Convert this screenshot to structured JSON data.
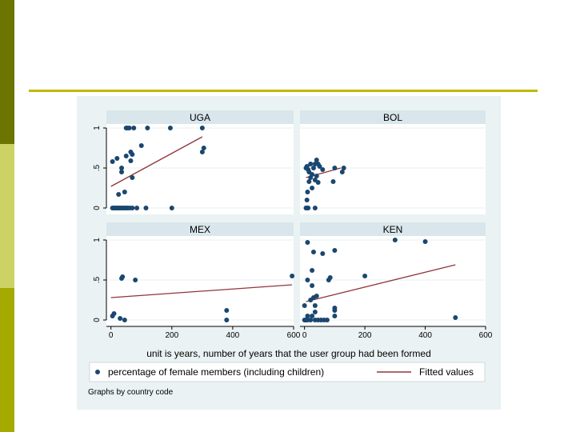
{
  "colors": {
    "slide_band_dark": "#6b7500",
    "slide_band_light": "#cdd265",
    "slide_band_mid": "#a4aa00",
    "slide_rule": "#bfb800",
    "graph_region": "#eaf2f3",
    "strip": "#d9e6eb",
    "point": "#1a476f",
    "fit_line": "#90353b"
  },
  "chart_data": {
    "type": "scatter",
    "layout": "2x2 small multiples",
    "xlabel": "unit is years, number of years that the user group had been formed",
    "ylabel": "",
    "x_ticks": [
      "0",
      "200",
      "400",
      "600"
    ],
    "y_ticks": [
      "0",
      ".5",
      "1"
    ],
    "xlim": [
      -15,
      600
    ],
    "ylim": [
      0,
      1
    ],
    "legend": {
      "position": "bottom",
      "entries": [
        {
          "label": "percentage of female members (including children)",
          "type": "marker"
        },
        {
          "label": "Fitted values",
          "type": "line"
        }
      ]
    },
    "note": "Graphs by country code",
    "panels": [
      {
        "name": "UGA",
        "fit": {
          "x": [
            0,
            300
          ],
          "y": [
            0.27,
            0.89
          ]
        },
        "points": [
          [
            5,
            0
          ],
          [
            8,
            0
          ],
          [
            12,
            0
          ],
          [
            15,
            0
          ],
          [
            18,
            0
          ],
          [
            22,
            0
          ],
          [
            25,
            0
          ],
          [
            30,
            0
          ],
          [
            35,
            0
          ],
          [
            40,
            0
          ],
          [
            45,
            0
          ],
          [
            50,
            0
          ],
          [
            55,
            0
          ],
          [
            62,
            0
          ],
          [
            70,
            0
          ],
          [
            85,
            0
          ],
          [
            115,
            0
          ],
          [
            200,
            0
          ],
          [
            25,
            0.17
          ],
          [
            45,
            0.2
          ],
          [
            70,
            0.38
          ],
          [
            35,
            0.45
          ],
          [
            35,
            0.5
          ],
          [
            5,
            0.58
          ],
          [
            20,
            0.62
          ],
          [
            65,
            0.59
          ],
          [
            50,
            0.65
          ],
          [
            70,
            0.67
          ],
          [
            65,
            0.7
          ],
          [
            100,
            0.78
          ],
          [
            300,
            0.7
          ],
          [
            305,
            0.75
          ],
          [
            50,
            1
          ],
          [
            55,
            1
          ],
          [
            60,
            1
          ],
          [
            75,
            1
          ],
          [
            120,
            1
          ],
          [
            195,
            1
          ],
          [
            300,
            1
          ]
        ]
      },
      {
        "name": "BOL",
        "fit": {
          "x": [
            5,
            120
          ],
          "y": [
            0.38,
            0.5
          ]
        },
        "points": [
          [
            5,
            0
          ],
          [
            8,
            0
          ],
          [
            12,
            0
          ],
          [
            35,
            0
          ],
          [
            8,
            0.1
          ],
          [
            10,
            0.2
          ],
          [
            25,
            0.25
          ],
          [
            15,
            0.33
          ],
          [
            35,
            0.35
          ],
          [
            45,
            0.32
          ],
          [
            40,
            0.4
          ],
          [
            95,
            0.33
          ],
          [
            20,
            0.38
          ],
          [
            5,
            0.5
          ],
          [
            8,
            0.52
          ],
          [
            12,
            0.48
          ],
          [
            15,
            0.45
          ],
          [
            20,
            0.55
          ],
          [
            25,
            0.42
          ],
          [
            30,
            0.5
          ],
          [
            35,
            0.55
          ],
          [
            40,
            0.6
          ],
          [
            45,
            0.55
          ],
          [
            50,
            0.52
          ],
          [
            60,
            0.48
          ],
          [
            100,
            0.5
          ],
          [
            125,
            0.45
          ],
          [
            130,
            0.5
          ]
        ]
      },
      {
        "name": "MEX",
        "fit": {
          "x": [
            0,
            595
          ],
          "y": [
            0.28,
            0.44
          ]
        },
        "points": [
          [
            5,
            0.05
          ],
          [
            10,
            0.08
          ],
          [
            30,
            0.02
          ],
          [
            45,
            0
          ],
          [
            35,
            0.52
          ],
          [
            38,
            0.54
          ],
          [
            80,
            0.5
          ],
          [
            595,
            0.55
          ],
          [
            380,
            0.12
          ],
          [
            380,
            0
          ]
        ]
      },
      {
        "name": "KEN",
        "fit": {
          "x": [
            5,
            500
          ],
          "y": [
            0.23,
            0.69
          ]
        },
        "points": [
          [
            0,
            0
          ],
          [
            5,
            0
          ],
          [
            10,
            0
          ],
          [
            20,
            0
          ],
          [
            35,
            0
          ],
          [
            45,
            0
          ],
          [
            55,
            0
          ],
          [
            65,
            0
          ],
          [
            75,
            0
          ],
          [
            10,
            0.05
          ],
          [
            25,
            0.05
          ],
          [
            100,
            0.05
          ],
          [
            35,
            0.1
          ],
          [
            0,
            0.18
          ],
          [
            35,
            0.18
          ],
          [
            100,
            0.12
          ],
          [
            100,
            0.15
          ],
          [
            20,
            0.25
          ],
          [
            40,
            0.3
          ],
          [
            30,
            0.28
          ],
          [
            25,
            0.43
          ],
          [
            10,
            0.5
          ],
          [
            80,
            0.5
          ],
          [
            85,
            0.53
          ],
          [
            200,
            0.55
          ],
          [
            25,
            0.62
          ],
          [
            10,
            0.97
          ],
          [
            30,
            0.85
          ],
          [
            60,
            0.83
          ],
          [
            100,
            0.87
          ],
          [
            300,
            1
          ],
          [
            400,
            0.98
          ],
          [
            500,
            0.03
          ]
        ]
      }
    ]
  }
}
